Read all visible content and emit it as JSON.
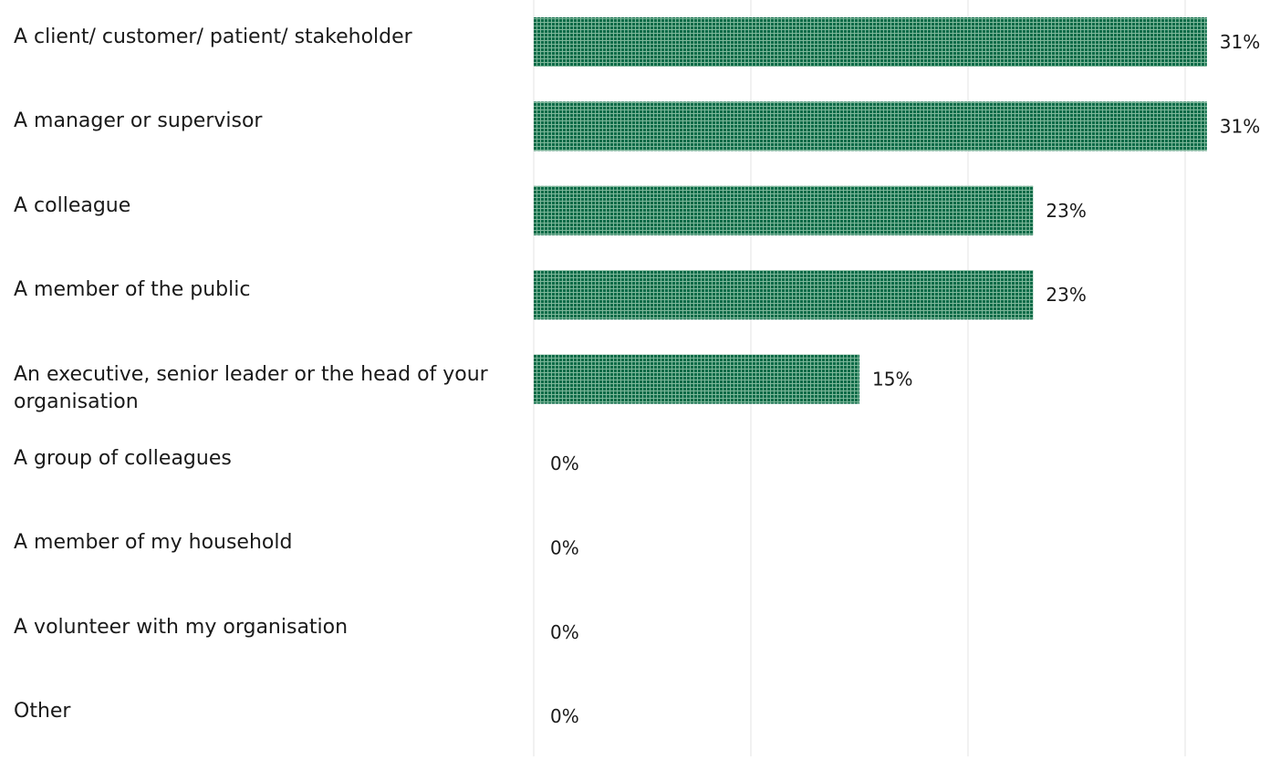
{
  "chart_data": {
    "type": "bar",
    "orientation": "horizontal",
    "categories": [
      "A client/ customer/ patient/ stakeholder",
      "A manager or supervisor",
      "A colleague",
      "A member of the public",
      "An executive, senior leader or the head of your organisation",
      "A group of colleagues",
      "A member of my household",
      "A volunteer with my organisation",
      "Other"
    ],
    "values": [
      31,
      31,
      23,
      23,
      15,
      0,
      0,
      0,
      0
    ],
    "value_labels": [
      "31%",
      "31%",
      "23%",
      "23%",
      "15%",
      "0%",
      "0%",
      "0%",
      "0%"
    ],
    "unit": "%",
    "xlim": [
      0,
      30
    ],
    "grid": true,
    "bar_color": "#0c6b48",
    "bar_pattern_color": "#7fb79a"
  }
}
